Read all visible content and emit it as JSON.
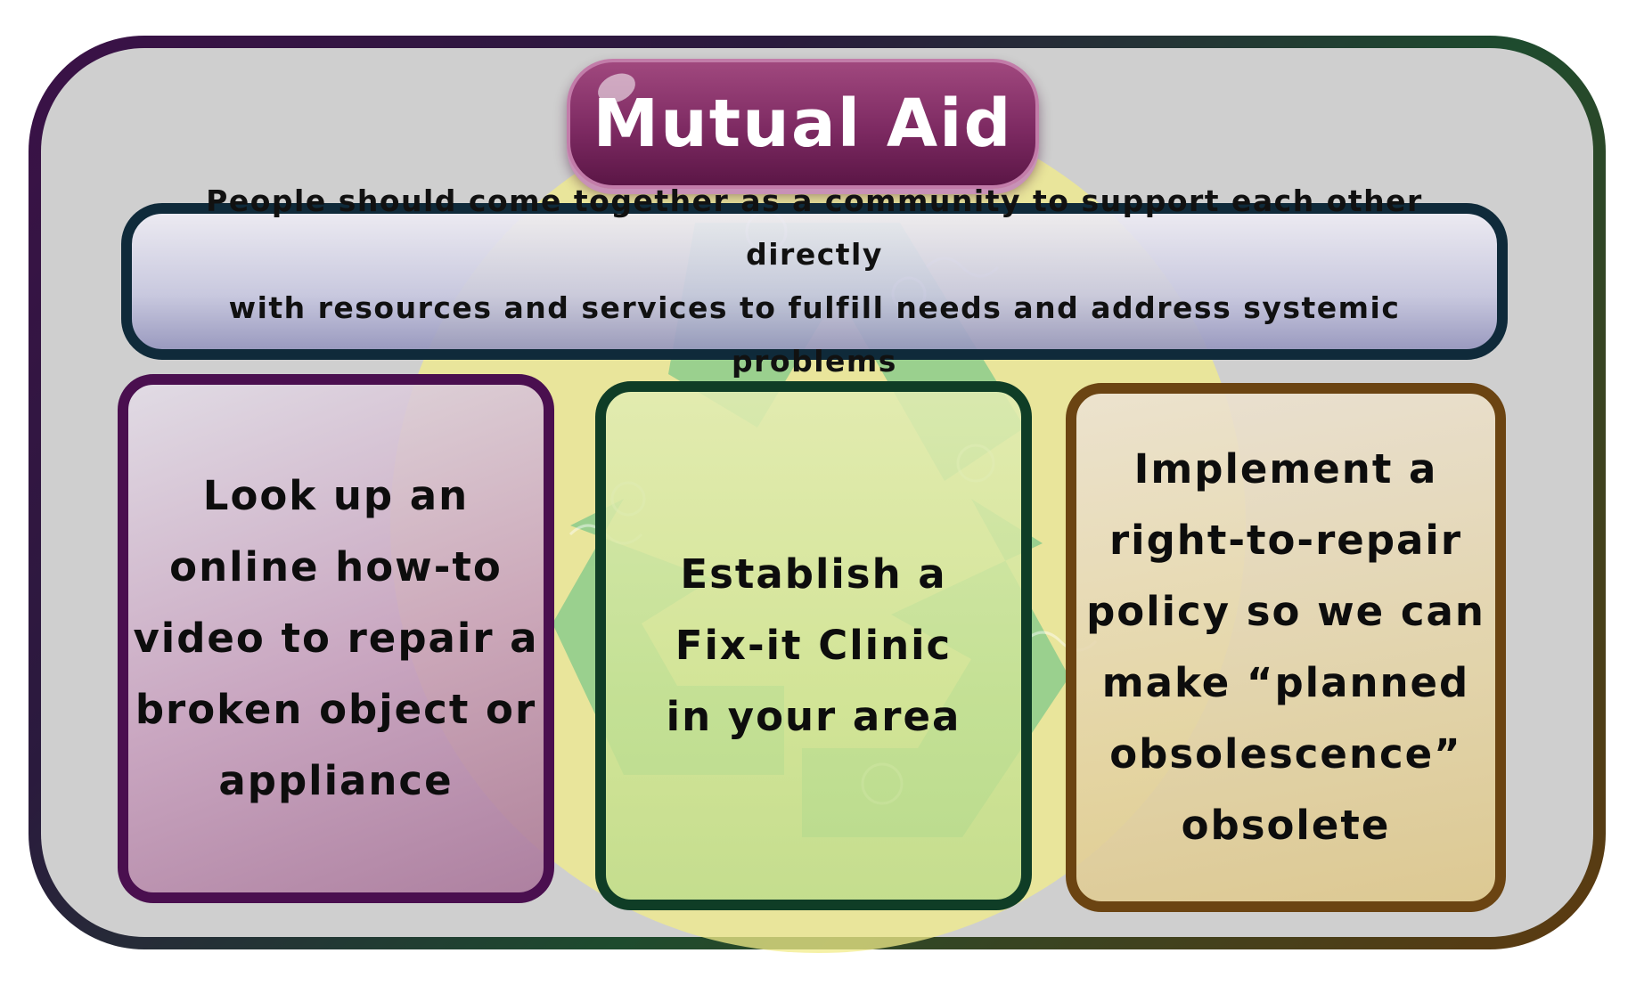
{
  "title": "Mutual Aid",
  "description": {
    "line1": "People should come together as a community to support each other directly",
    "line2": "with resources and services to fulfill needs and address systemic problems"
  },
  "cards": [
    {
      "lines": [
        "Look up an",
        "online how-to",
        "video to repair a",
        "broken object or",
        "appliance"
      ]
    },
    {
      "lines": [
        "Establish a",
        "Fix-it Clinic",
        "in your area"
      ]
    },
    {
      "lines": [
        "Implement a",
        "right-to-repair",
        "policy so we can",
        "make “planned",
        "obsolescence”",
        "obsolete"
      ]
    }
  ],
  "colors": {
    "title_pill": "#7d2a62",
    "description_border": "#0f2a3a",
    "card_1_border": "#4a0f4f",
    "card_2_border": "#0f3d26",
    "card_3_border": "#6b4412",
    "background_circle": "#f2ec8a",
    "recycle_arrows": "#7fc88a"
  },
  "icons": [
    "recycle-symbol-icon"
  ]
}
